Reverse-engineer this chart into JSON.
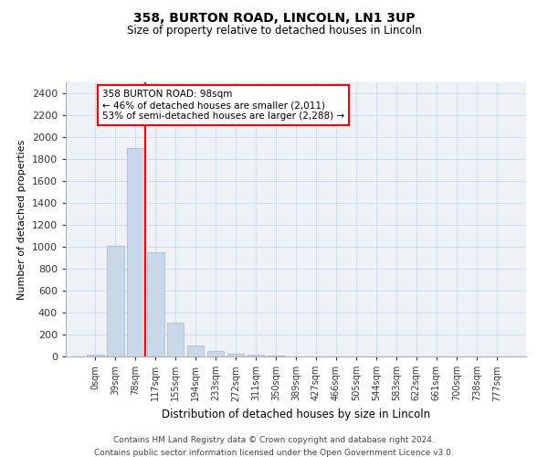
{
  "title": "358, BURTON ROAD, LINCOLN, LN1 3UP",
  "subtitle": "Size of property relative to detached houses in Lincoln",
  "xlabel": "Distribution of detached houses by size in Lincoln",
  "ylabel": "Number of detached properties",
  "bar_color": "#c8d8e8",
  "bar_edge_color": "#a0b8cc",
  "categories": [
    "0sqm",
    "39sqm",
    "78sqm",
    "117sqm",
    "155sqm",
    "194sqm",
    "233sqm",
    "272sqm",
    "311sqm",
    "350sqm",
    "389sqm",
    "427sqm",
    "466sqm",
    "505sqm",
    "544sqm",
    "583sqm",
    "622sqm",
    "661sqm",
    "700sqm",
    "738sqm",
    "777sqm"
  ],
  "values": [
    20,
    1010,
    1900,
    950,
    310,
    100,
    50,
    25,
    15,
    8,
    4,
    2,
    1,
    1,
    0,
    0,
    0,
    0,
    0,
    0,
    0
  ],
  "red_line_x": 2.5,
  "annotation_text": "358 BURTON ROAD: 98sqm\n← 46% of detached houses are smaller (2,011)\n53% of semi-detached houses are larger (2,288) →",
  "annotation_box_color": "white",
  "annotation_box_edge": "red",
  "ylim": [
    0,
    2500
  ],
  "yticks": [
    0,
    200,
    400,
    600,
    800,
    1000,
    1200,
    1400,
    1600,
    1800,
    2000,
    2200,
    2400
  ],
  "footer1": "Contains HM Land Registry data © Crown copyright and database right 2024.",
  "footer2": "Contains public sector information licensed under the Open Government Licence v3.0.",
  "background_color": "#eef2f7",
  "grid_color": "#d0d8e4"
}
